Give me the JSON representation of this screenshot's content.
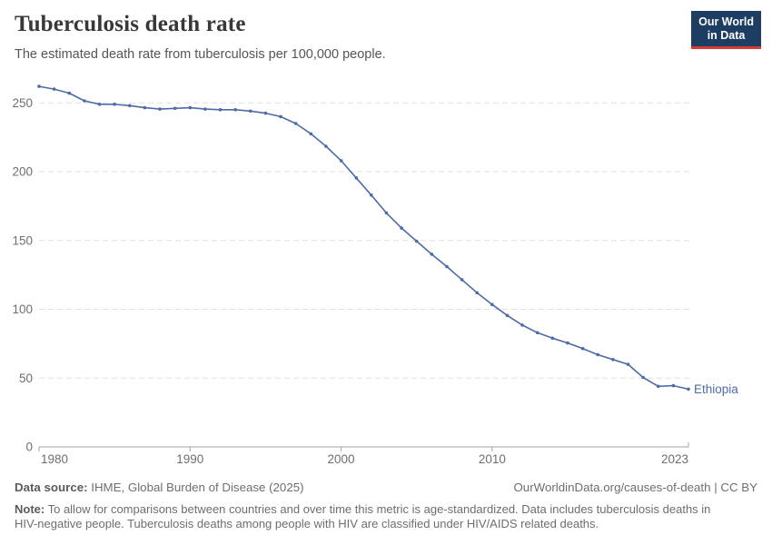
{
  "header": {
    "title": "Tuberculosis death rate",
    "subtitle": "The estimated death rate from tuberculosis per 100,000 people.",
    "logo": {
      "line1": "Our World",
      "line2": "in Data"
    }
  },
  "colors": {
    "line": "#4c6ca8",
    "entity_label": "#4c6ca8",
    "gridline": "#e0e0e0",
    "axis": "#a3a3a3",
    "tick_label": "#6e6e6e",
    "logo_bg": "#1d3d63",
    "logo_accent": "#d63c32"
  },
  "chart_data": {
    "type": "line",
    "title": "Tuberculosis death rate",
    "subtitle": "The estimated death rate from tuberculosis per 100,000 people.",
    "xlabel": "",
    "ylabel": "",
    "grid": true,
    "legend": "end-of-line-label",
    "xlim": [
      1980,
      2023
    ],
    "ylim": [
      0,
      262
    ],
    "x_ticks": [
      1980,
      1990,
      2000,
      2010,
      2023
    ],
    "y_ticks": [
      0,
      50,
      100,
      150,
      200,
      250
    ],
    "series": [
      {
        "name": "Ethiopia",
        "x": [
          1980,
          1981,
          1982,
          1983,
          1984,
          1985,
          1986,
          1987,
          1988,
          1989,
          1990,
          1991,
          1992,
          1993,
          1994,
          1995,
          1996,
          1997,
          1998,
          1999,
          2000,
          2001,
          2002,
          2003,
          2004,
          2005,
          2006,
          2007,
          2008,
          2009,
          2010,
          2011,
          2012,
          2013,
          2014,
          2015,
          2016,
          2017,
          2018,
          2019,
          2020,
          2021,
          2022,
          2023
        ],
        "values": [
          262,
          260,
          257,
          251.5,
          249,
          249,
          248,
          246.5,
          245.5,
          246,
          246.5,
          245.5,
          245,
          245,
          244,
          242.5,
          240,
          235,
          227.5,
          218.5,
          208,
          195.5,
          183,
          170,
          159,
          149.5,
          140,
          131,
          121.5,
          112,
          103.5,
          95.5,
          88.5,
          83,
          79,
          75.5,
          71.5,
          67,
          63.5,
          60,
          50.5,
          44,
          44.5,
          42
        ]
      }
    ]
  },
  "footer": {
    "datasource_label": "Data source:",
    "datasource_text": " IHME, Global Burden of Disease (2025)",
    "link_text": "OurWorldinData.org/causes-of-death | CC BY",
    "note_label": "Note:",
    "note_text": " To allow for comparisons between countries and over time this metric is age-standardized. Data includes tuberculosis deaths in HIV-negative people. Tuberculosis deaths among people with HIV are classified under HIV/AIDS related deaths."
  }
}
